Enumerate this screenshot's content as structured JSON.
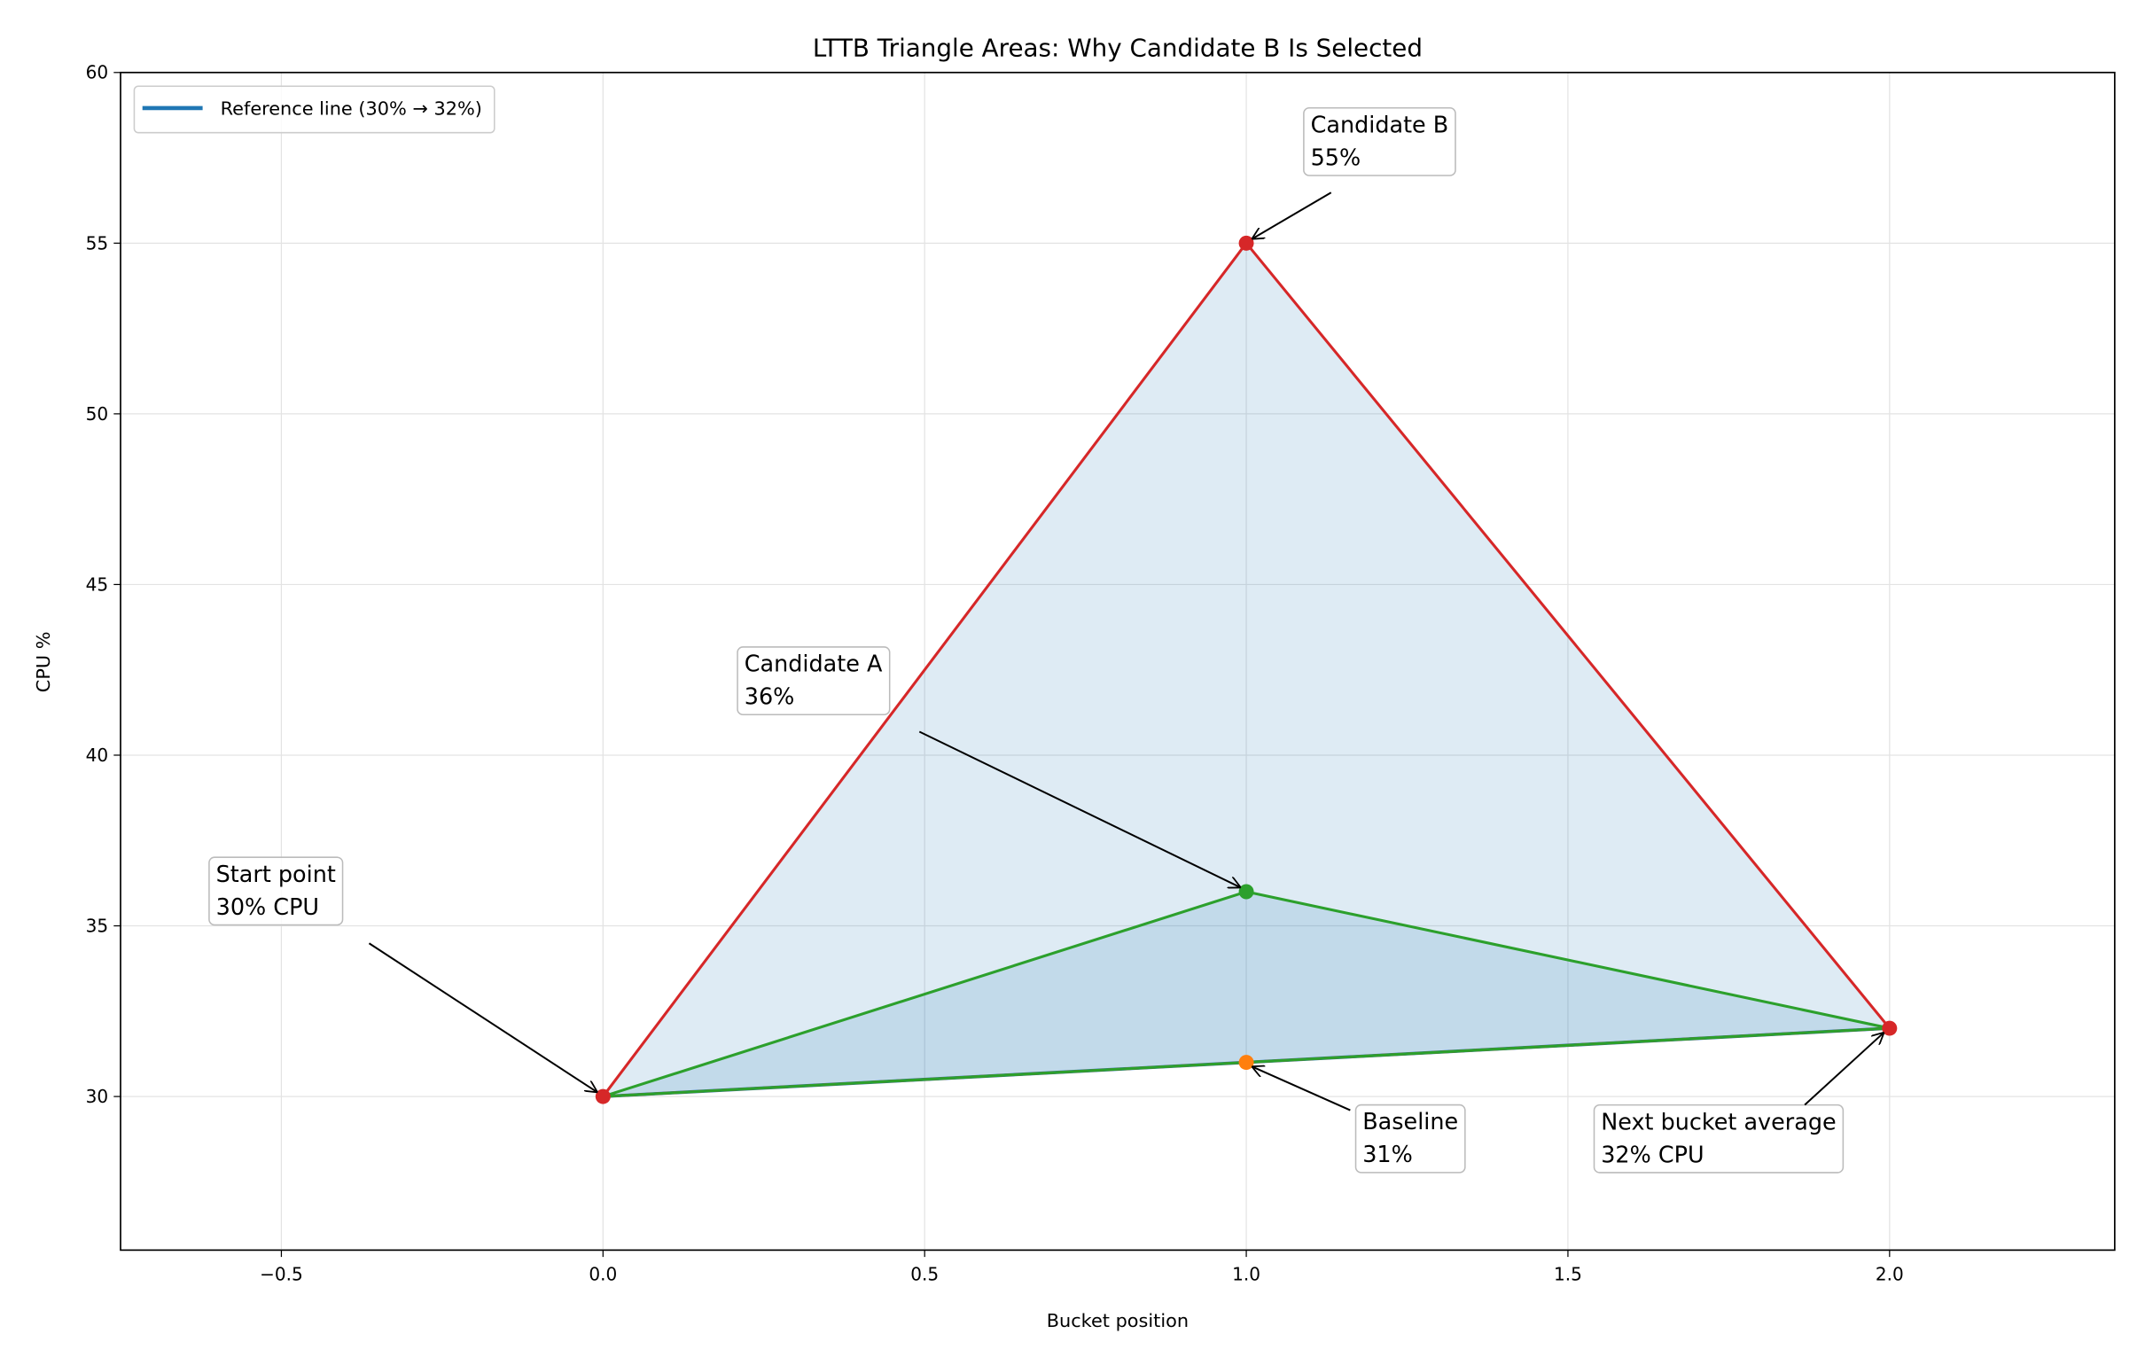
{
  "chart_data": {
    "type": "triangle-areas",
    "title": "LTTB Triangle Areas: Why Candidate B Is Selected",
    "x_label": "Bucket position",
    "y_label": "CPU %",
    "xlim": [
      -0.75,
      2.35
    ],
    "ylim": [
      25.5,
      60
    ],
    "xticks": [
      {
        "value": -0.5,
        "label": "−0.5"
      },
      {
        "value": 0,
        "label": "0.0"
      },
      0.5,
      {
        "value": 1,
        "label": "1.0"
      },
      1.5,
      {
        "value": 2,
        "label": "2.0"
      }
    ],
    "yticks": [
      30,
      35,
      40,
      45,
      50,
      55,
      60
    ],
    "grid": true,
    "legend": "upper left",
    "fill_color": "#1f77b4",
    "series": [
      {
        "name": "Reference line (30% → 32%)",
        "color": "#1f77b4",
        "x": [
          0,
          2
        ],
        "values": [
          30,
          32
        ]
      }
    ],
    "triangles": [
      {
        "color": "#d62728",
        "x": [
          0,
          1,
          2
        ],
        "values": [
          30,
          55,
          32
        ]
      },
      {
        "color": "#2ca02c",
        "x": [
          0,
          1,
          2
        ],
        "values": [
          30,
          36,
          32
        ]
      }
    ],
    "points": [
      {
        "x": 0,
        "y": 30,
        "color": "#d62728",
        "text": [
          "Start point",
          "30% CPU"
        ]
      },
      {
        "x": 1,
        "y": 36,
        "color": "#2ca02c",
        "text": [
          "Candidate A",
          "36%"
        ]
      },
      {
        "x": 1,
        "y": 55,
        "color": "#d62728",
        "text": [
          "Candidate B",
          "55%"
        ]
      },
      {
        "x": 1,
        "y": 31,
        "color": "#ff7f0e",
        "text": [
          "Baseline",
          "31%"
        ]
      },
      {
        "x": 2,
        "y": 32,
        "color": "#d62728",
        "text": [
          "Next bucket average",
          "32% CPU"
        ]
      }
    ]
  }
}
